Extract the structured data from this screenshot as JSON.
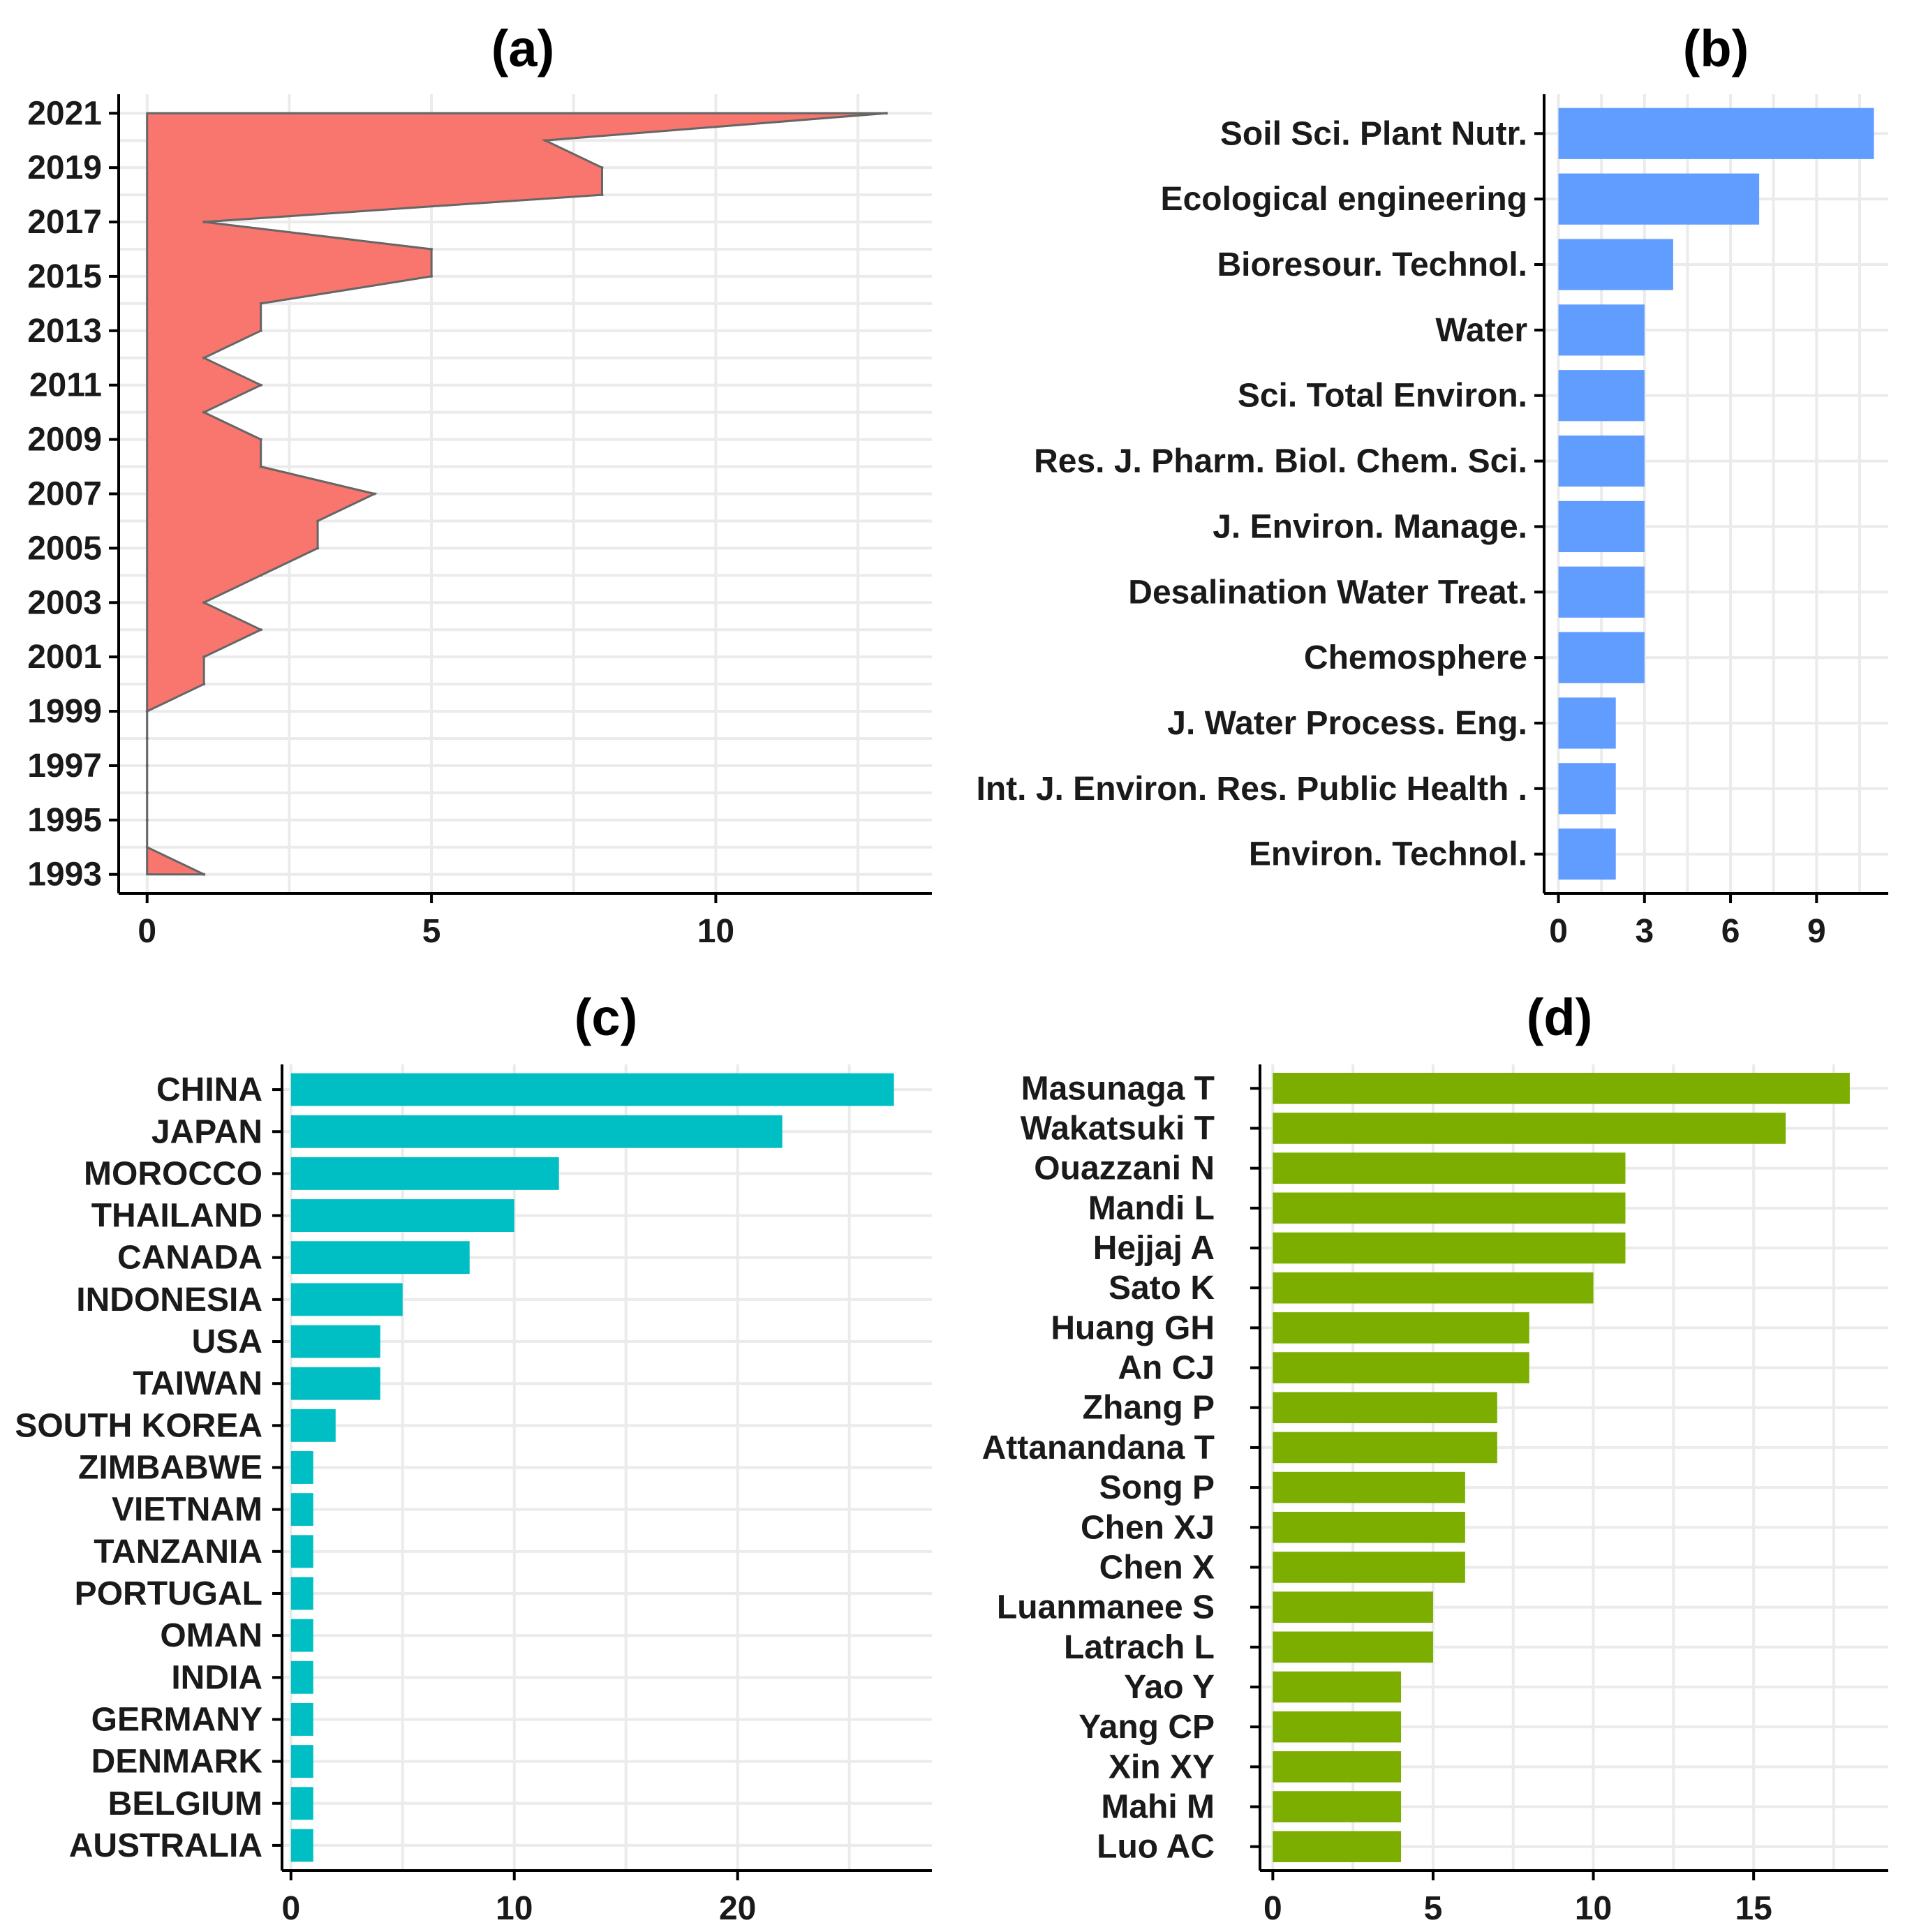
{
  "chart_data": [
    {
      "panel": "a",
      "type": "area",
      "title": "(a)",
      "orientation": "horizontal",
      "color": "#F8766D",
      "y_years": [
        1993,
        1994,
        1995,
        1996,
        1997,
        1998,
        1999,
        2000,
        2001,
        2002,
        2003,
        2004,
        2005,
        2006,
        2007,
        2008,
        2009,
        2010,
        2011,
        2012,
        2013,
        2014,
        2015,
        2016,
        2017,
        2018,
        2019,
        2020,
        2021
      ],
      "values": [
        1,
        0,
        0,
        0,
        0,
        0,
        0,
        1,
        1,
        2,
        1,
        2,
        3,
        3,
        4,
        2,
        2,
        1,
        2,
        1,
        2,
        2,
        5,
        5,
        1,
        8,
        8,
        7,
        13
      ],
      "xlim": [
        -0.5,
        13.8
      ],
      "ylim": [
        1992.3,
        2021.7
      ],
      "xticks": [
        0,
        5,
        10
      ],
      "yticks": [
        1993,
        1995,
        1997,
        1999,
        2001,
        2003,
        2005,
        2007,
        2009,
        2011,
        2013,
        2015,
        2017,
        2019,
        2021
      ]
    },
    {
      "panel": "b",
      "type": "bar",
      "title": "(b)",
      "orientation": "horizontal",
      "color": "#619CFF",
      "categories": [
        "Soil Sci. Plant Nutr.",
        "Ecological engineering",
        "Bioresour. Technol.",
        "Water",
        "Sci. Total Environ.",
        "Res. J. Pharm. Biol. Chem. Sci.",
        "J. Environ. Manage.",
        "Desalination Water Treat.",
        "Chemosphere",
        "J. Water Process. Eng.",
        "Int. J. Environ. Res. Public Health .",
        "Environ. Technol."
      ],
      "values": [
        11,
        7,
        4,
        3,
        3,
        3,
        3,
        3,
        3,
        2,
        2,
        2
      ],
      "xlim": [
        -0.5,
        11.5
      ],
      "xticks": [
        0,
        3,
        6,
        9
      ]
    },
    {
      "panel": "c",
      "type": "bar",
      "title": "(c)",
      "orientation": "horizontal",
      "color": "#00BFC4",
      "categories": [
        "CHINA",
        "JAPAN",
        "MOROCCO",
        "THAILAND",
        "CANADA",
        "INDONESIA",
        "USA",
        "TAIWAN",
        "SOUTH KOREA",
        "ZIMBABWE",
        "VIETNAM",
        "TANZANIA",
        "PORTUGAL",
        "OMAN",
        "INDIA",
        "GERMANY",
        "DENMARK",
        "BELGIUM",
        "AUSTRALIA"
      ],
      "values": [
        27,
        22,
        12,
        10,
        8,
        5,
        4,
        4,
        2,
        1,
        1,
        1,
        1,
        1,
        1,
        1,
        1,
        1,
        1
      ],
      "xlim": [
        -0.4,
        28.7
      ],
      "xticks": [
        0,
        10,
        20
      ]
    },
    {
      "panel": "d",
      "type": "bar",
      "title": "(d)",
      "orientation": "horizontal",
      "color": "#7CAE00",
      "categories": [
        "Masunaga T",
        "Wakatsuki T",
        "Ouazzani N",
        "Mandi L",
        "Hejjaj A",
        "Sato K",
        "Huang GH",
        "An CJ",
        "Zhang P",
        "Attanandana T",
        "Song P",
        "Chen XJ",
        "Chen X",
        "Luanmanee S",
        "Latrach L",
        "Yao Y",
        "Yang CP",
        "Xin XY",
        "Mahi M",
        "Luo AC"
      ],
      "values": [
        18,
        16,
        11,
        11,
        11,
        10,
        8,
        8,
        7,
        7,
        6,
        6,
        6,
        5,
        5,
        4,
        4,
        4,
        4,
        4
      ],
      "xlim": [
        -0.4,
        19.2
      ],
      "xticks": [
        0,
        5,
        10,
        15
      ]
    }
  ]
}
